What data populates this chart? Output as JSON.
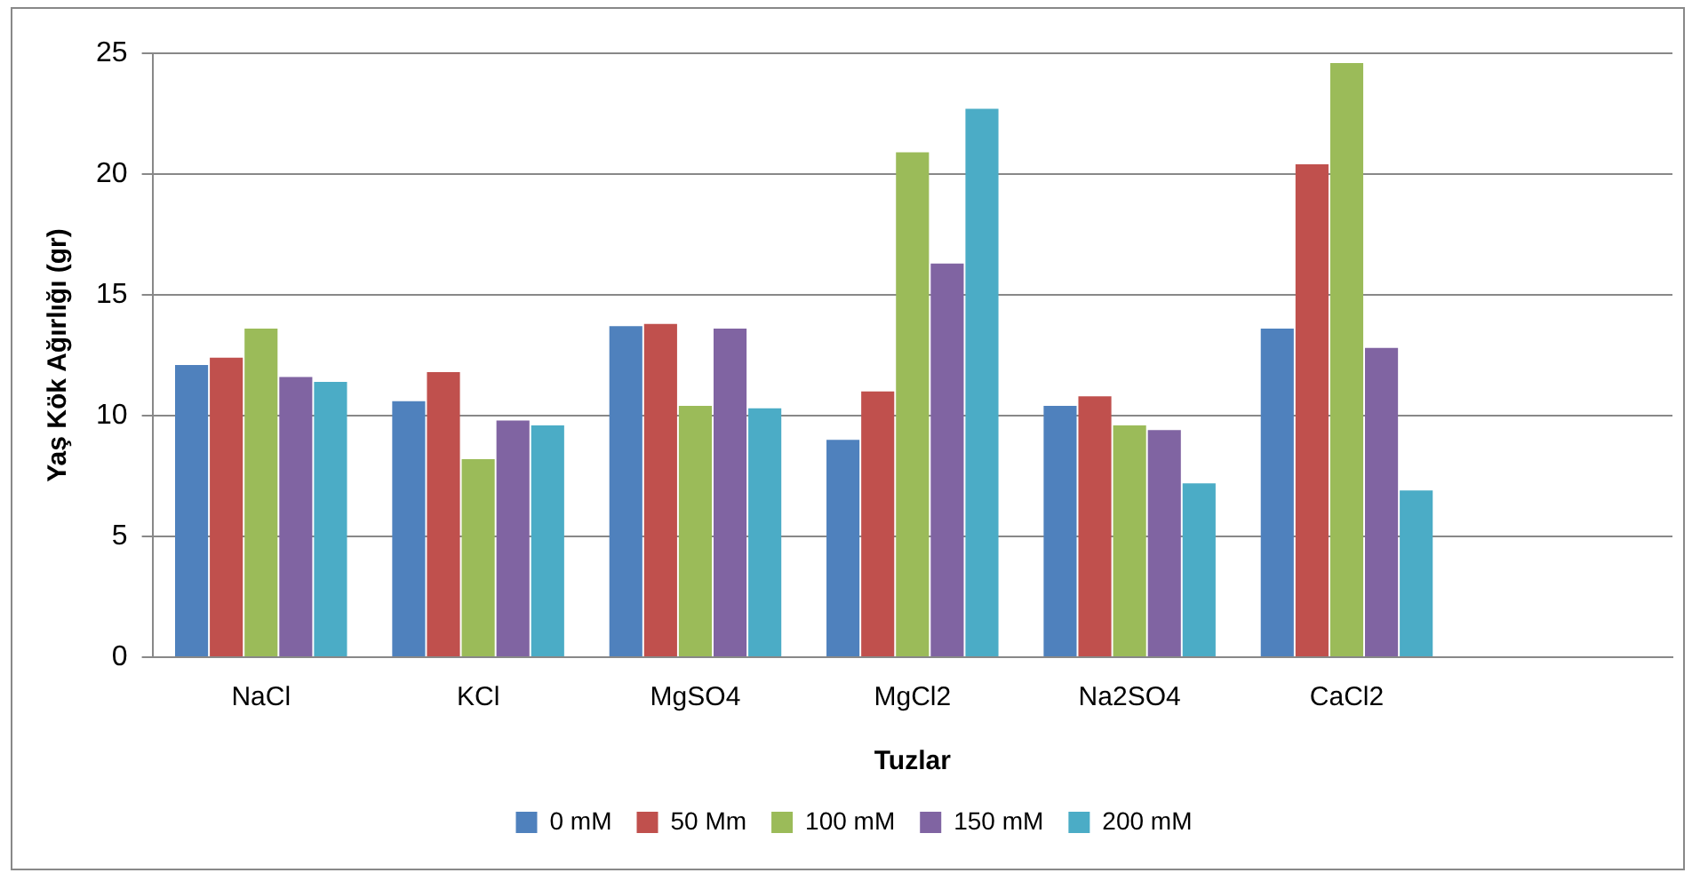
{
  "chart_data": {
    "type": "bar",
    "xlabel": "Tuzlar",
    "ylabel": "Yaş Kök Ağırlığı (gr)",
    "categories": [
      "NaCl",
      "KCl",
      "MgSO4",
      "MgCl2",
      "Na2SO4",
      "CaCl2",
      null
    ],
    "series": [
      {
        "name": "0 mM",
        "color": "#4f81bd",
        "values": [
          12.1,
          10.6,
          13.7,
          9.0,
          10.4,
          13.6,
          null
        ]
      },
      {
        "name": "50 Mm",
        "color": "#c0504d",
        "values": [
          12.4,
          11.8,
          13.8,
          11.0,
          10.8,
          20.4,
          null
        ]
      },
      {
        "name": "100 mM",
        "color": "#9bbb59",
        "values": [
          13.6,
          8.2,
          10.4,
          20.9,
          9.6,
          24.6,
          null
        ]
      },
      {
        "name": "150 mM",
        "color": "#8064a2",
        "values": [
          11.6,
          9.8,
          13.6,
          16.3,
          9.4,
          12.8,
          null
        ]
      },
      {
        "name": "200 mM",
        "color": "#4bacc6",
        "values": [
          11.4,
          9.6,
          10.3,
          22.7,
          7.2,
          6.9,
          null
        ]
      }
    ],
    "ylim": [
      0,
      25
    ],
    "yticks": [
      0,
      5,
      10,
      15,
      20,
      25
    ],
    "grid": "y",
    "legend": "bottom"
  }
}
